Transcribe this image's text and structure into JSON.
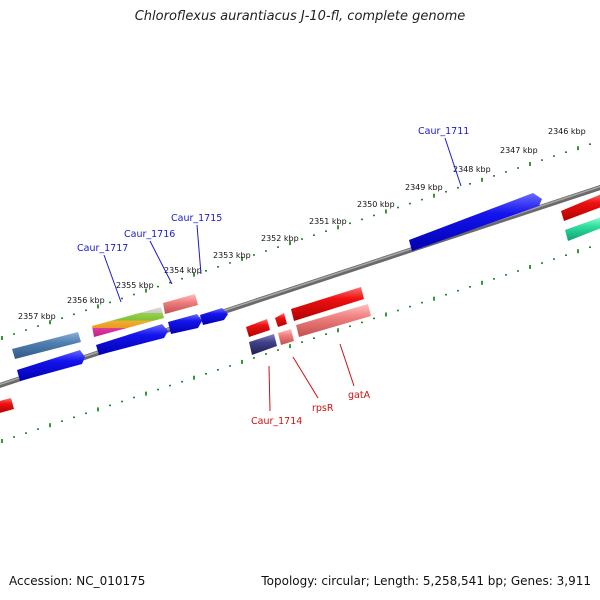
{
  "title": "Chloroflexus aurantiacus J-10-fl, complete genome",
  "footer": {
    "accession": "Accession: NC_010175",
    "summary": "Topology: circular; Length: 5,258,541 bp; Genes: 3,911"
  },
  "scale_labels": [
    "2357 kbp",
    "2356 kbp",
    "2355 kbp",
    "2354 kbp",
    "2353 kbp",
    "2352 kbp",
    "2351 kbp",
    "2350 kbp",
    "2349 kbp",
    "2348 kbp",
    "2347 kbp",
    "2346 kbp"
  ],
  "gene_labels": {
    "forward": [
      "Caur_1717",
      "Caur_1716",
      "Caur_1715",
      "Caur_1711"
    ],
    "reverse": [
      "Caur_1714",
      "rpsR",
      "gatA"
    ]
  },
  "colors": {
    "forward_gene": "#1010e0",
    "reverse_gene": "#ee1111",
    "backbone": "#888888",
    "tick": "#0a7a0a",
    "forward_label": "#1a1acc",
    "reverse_label": "#cc1111"
  }
}
